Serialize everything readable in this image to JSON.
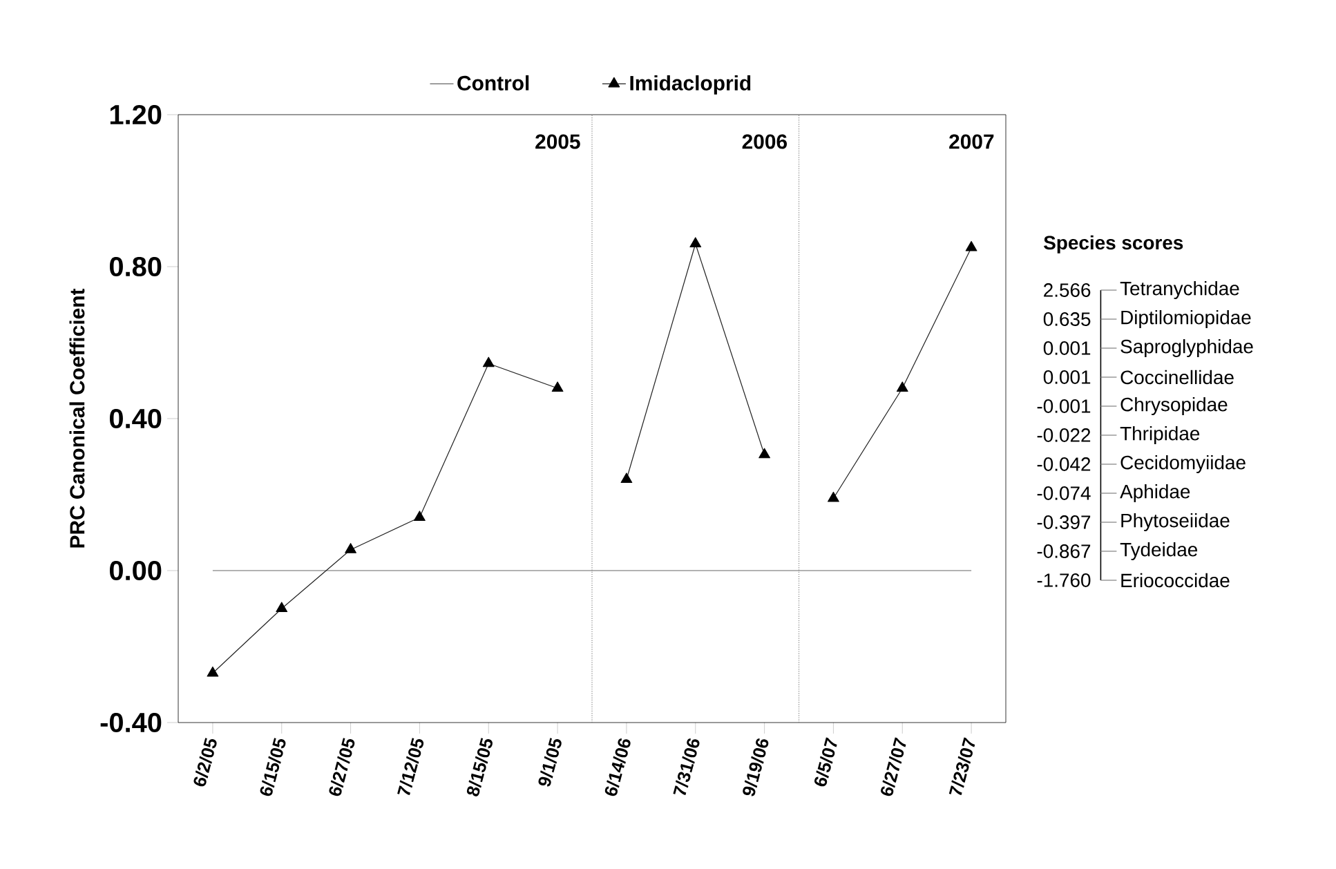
{
  "chart_data": [
    {
      "type": "line",
      "ylabel": "PRC Canonical Coefficient",
      "categories": [
        "6/2/05",
        "6/15/05",
        "6/27/05",
        "7/12/05",
        "8/15/05",
        "9/1/05",
        "6/14/06",
        "7/31/06",
        "9/19/06",
        "6/5/07",
        "6/27/07",
        "7/23/07"
      ],
      "series": [
        {
          "name": "Control",
          "color": "#666666",
          "marker": "none",
          "values": [
            0,
            0,
            0,
            0,
            0,
            0,
            0,
            0,
            0,
            0,
            0,
            0
          ]
        },
        {
          "name": "Imidacloprid",
          "color": "#222222",
          "marker": "triangle",
          "values": [
            -0.27,
            -0.1,
            0.055,
            0.14,
            0.545,
            0.48,
            0.24,
            0.86,
            0.305,
            0.19,
            0.48,
            0.85
          ]
        }
      ],
      "ylim": [
        -0.4,
        1.2
      ],
      "yticks": [
        {
          "value": -0.4,
          "label": "-0.40"
        },
        {
          "value": 0,
          "label": "0.00"
        },
        {
          "value": 0.4,
          "label": "0.40"
        },
        {
          "value": 0.8,
          "label": "0.80"
        },
        {
          "value": 1.2,
          "label": "1.20"
        }
      ],
      "annotations": [
        "2005",
        "2006",
        "2007"
      ],
      "legend": "top",
      "grid": false
    },
    {
      "type": "other",
      "title": "Species scores",
      "categories": [
        "Tetranychidae",
        "Diptilomiopidae",
        "Saproglyphidae",
        "Coccinellidae",
        "Chrysopidae",
        "Thripidae",
        "Cecidomyiidae",
        "Aphidae",
        "Phytoseiidae",
        "Tydeidae",
        "Eriococcidae"
      ],
      "value_labels": [
        "2.566",
        "0.635",
        "0.001",
        "0.001",
        "-0.001",
        "-0.022",
        "-0.042",
        "-0.074",
        "-0.397",
        "-0.867",
        "-1.760"
      ]
    }
  ]
}
